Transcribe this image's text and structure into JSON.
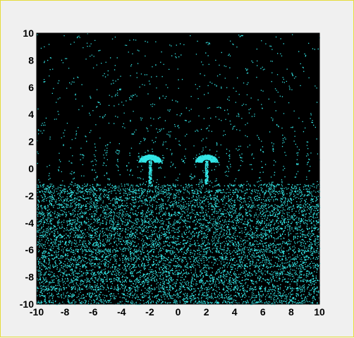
{
  "chart_data": {
    "type": "scatter",
    "title": "",
    "xlabel": "",
    "ylabel": "",
    "xlim": [
      -10,
      10
    ],
    "ylim": [
      -10,
      10
    ],
    "grid": false,
    "legend": "none",
    "x_ticks": [
      -10,
      -8,
      -6,
      -4,
      -2,
      0,
      2,
      4,
      6,
      8,
      10
    ],
    "y_ticks": [
      10,
      8,
      6,
      4,
      2,
      0,
      -2,
      -4,
      -6,
      -8,
      -10
    ],
    "x_tick_labels": [
      "-10",
      "-8",
      "-6",
      "-4",
      "-2",
      "0",
      "2",
      "4",
      "6",
      "8",
      "10"
    ],
    "y_tick_labels": [
      "10",
      "8",
      "6",
      "4",
      "2",
      "0",
      "-2",
      "-4",
      "-6",
      "-8",
      "-10"
    ],
    "background_color": "#000000",
    "marker_color": "#33e6e6",
    "series": [
      {
        "description_free": true,
        "sources": [
          {
            "x": -2,
            "y": 0.6
          },
          {
            "x": 2,
            "y": 0.6
          }
        ],
        "source_stem_bottom_y": -1.1,
        "wavefront_spacing": 0.8,
        "ground_level_y": -1.1,
        "ground_band_spacing": 0.55
      }
    ]
  }
}
